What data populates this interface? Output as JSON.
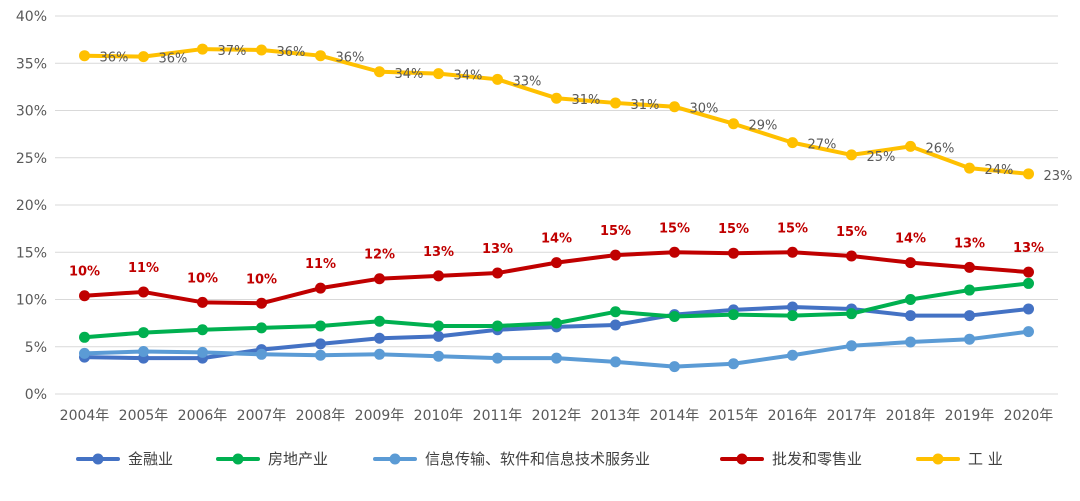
{
  "chart_data": {
    "type": "line",
    "x": [
      "2004年",
      "2005年",
      "2006年",
      "2007年",
      "2008年",
      "2009年",
      "2010年",
      "2011年",
      "2012年",
      "2013年",
      "2014年",
      "2015年",
      "2016年",
      "2017年",
      "2018年",
      "2019年",
      "2020年"
    ],
    "yticks": [
      "0%",
      "5%",
      "10%",
      "15%",
      "20%",
      "25%",
      "30%",
      "35%",
      "40%"
    ],
    "ylim": [
      0,
      40
    ],
    "grid": true,
    "legend": "bottom",
    "series": [
      {
        "name": "金融业",
        "color": "#4472C4",
        "values": [
          3.9,
          3.8,
          3.8,
          4.7,
          5.3,
          5.9,
          6.1,
          6.8,
          7.1,
          7.3,
          8.4,
          8.9,
          9.2,
          9.0,
          8.3,
          8.3,
          9.0
        ],
        "labels": []
      },
      {
        "name": "房地产业",
        "color": "#00B050",
        "values": [
          6.0,
          6.5,
          6.8,
          7.0,
          7.2,
          7.7,
          7.2,
          7.2,
          7.5,
          8.7,
          8.2,
          8.4,
          8.3,
          8.5,
          10.0,
          11.0,
          11.7
        ],
        "labels": []
      },
      {
        "name": "信息传输、软件和信息技术服务业",
        "color": "#5B9BD5",
        "values": [
          4.3,
          4.5,
          4.4,
          4.2,
          4.1,
          4.2,
          4.0,
          3.8,
          3.8,
          3.4,
          2.9,
          3.2,
          4.1,
          5.1,
          5.5,
          5.8,
          6.6
        ],
        "labels": []
      },
      {
        "name": "批发和零售业",
        "color": "#C00000",
        "values": [
          10.4,
          10.8,
          9.7,
          9.6,
          11.2,
          12.2,
          12.5,
          12.8,
          13.9,
          14.7,
          15.0,
          14.9,
          15.0,
          14.6,
          13.9,
          13.4,
          12.9
        ],
        "labels": [
          "10%",
          "11%",
          "10%",
          "10%",
          "11%",
          "12%",
          "13%",
          "13%",
          "14%",
          "15%",
          "15%",
          "15%",
          "15%",
          "15%",
          "14%",
          "13%",
          "13%"
        ]
      },
      {
        "name": "工 业",
        "color": "#FFC000",
        "values": [
          35.8,
          35.7,
          36.5,
          36.4,
          35.8,
          34.1,
          33.9,
          33.3,
          31.3,
          30.8,
          30.4,
          28.6,
          26.6,
          25.3,
          26.2,
          23.9,
          23.3
        ],
        "labels": [
          "36%",
          "36%",
          "37%",
          "36%",
          "36%",
          "34%",
          "34%",
          "33%",
          "31%",
          "31%",
          "30%",
          "29%",
          "27%",
          "25%",
          "26%",
          "24%",
          "23%"
        ]
      }
    ]
  }
}
